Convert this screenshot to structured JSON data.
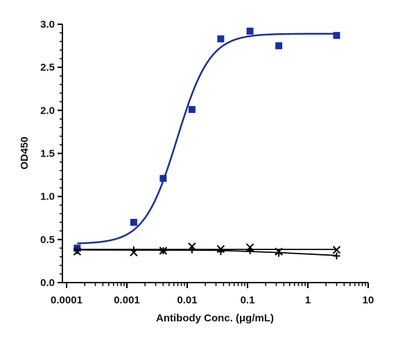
{
  "chart_data": {
    "type": "scatter",
    "xlabel": "Antibody Conc. (μg/mL)",
    "ylabel": "OD450",
    "xscale": "log",
    "xlim": [
      0.0001,
      10
    ],
    "ylim": [
      0,
      3.0
    ],
    "x_ticks": [
      "0.0001",
      "0.001",
      "0.01",
      "0.1",
      "1",
      "10"
    ],
    "y_ticks": [
      "0.0",
      "0.5",
      "1.0",
      "1.5",
      "2.0",
      "2.5",
      "3.0"
    ],
    "grid": false,
    "legend": "none",
    "series": [
      {
        "marker": "square",
        "color": "#1a2fa0",
        "x": [
          0.00015,
          0.0013,
          0.004,
          0.012,
          0.036,
          0.11,
          0.33,
          3.0
        ],
        "y": [
          0.4,
          0.7,
          1.21,
          2.01,
          2.83,
          2.92,
          2.75,
          2.87
        ],
        "fit": {
          "bottom": 0.45,
          "top": 2.89,
          "ec50": 0.0068,
          "hill": 1.6
        }
      },
      {
        "marker": "cross",
        "color": "#000000",
        "x": [
          0.00015,
          0.0013,
          0.004,
          0.012,
          0.036,
          0.11,
          0.33,
          3.0
        ],
        "y": [
          0.36,
          0.35,
          0.37,
          0.42,
          0.39,
          0.41,
          0.36,
          0.38
        ],
        "fit_line": [
          [
            0.00015,
            0.385
          ],
          [
            3.0,
            0.385
          ]
        ]
      },
      {
        "marker": "plus",
        "color": "#000000",
        "x": [
          0.00015,
          0.0013,
          0.004,
          0.012,
          0.036,
          0.11,
          0.33,
          3.0
        ],
        "y": [
          0.37,
          0.38,
          0.37,
          0.38,
          0.36,
          0.37,
          0.34,
          0.31
        ],
        "fit_line": [
          [
            0.00015,
            0.38
          ],
          [
            0.03,
            0.375
          ],
          [
            0.3,
            0.35
          ],
          [
            3.0,
            0.315
          ]
        ]
      }
    ]
  }
}
